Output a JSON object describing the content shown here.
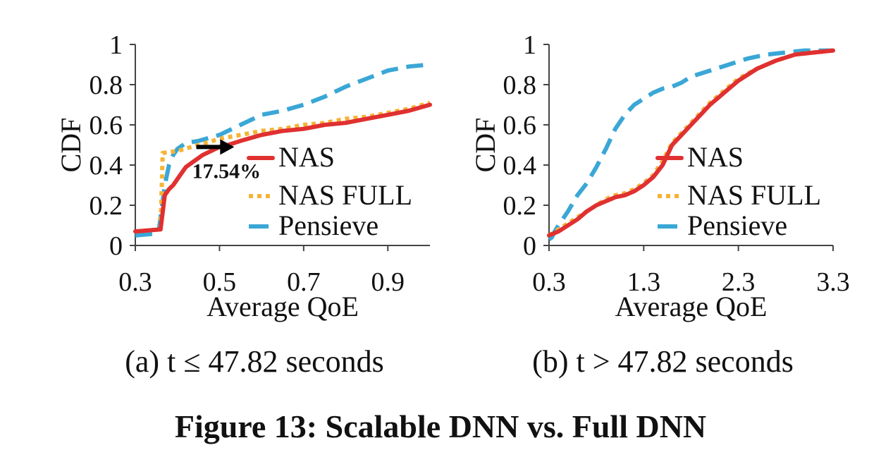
{
  "figure": {
    "caption": "Figure 13: Scalable DNN vs. Full DNN"
  },
  "colors": {
    "NAS": "#e03030",
    "NAS FULL": "#f5b335",
    "Pensieve": "#3aa7d6",
    "axis": "#444444",
    "text": "#111111"
  },
  "chart_data": [
    {
      "type": "line",
      "subcaption": "(a) t ≤ 47.82 seconds",
      "xlabel": "Average QoE",
      "ylabel": "CDF",
      "xlim": [
        0.3,
        1.0
      ],
      "ylim": [
        0,
        1
      ],
      "xticks": [
        0.3,
        0.5,
        0.7,
        0.9
      ],
      "xtick_labels": [
        "0.3",
        "0.5",
        "0.7",
        "0.9"
      ],
      "yticks": [
        0,
        0.2,
        0.4,
        0.6,
        0.8,
        1
      ],
      "ytick_labels": [
        "0",
        "0.2",
        "0.4",
        "0.6",
        "0.8",
        "1"
      ],
      "grid": false,
      "legend": "right",
      "annotation": {
        "text": "17.54%",
        "arrow_from": [
          0.445,
          0.49
        ],
        "arrow_to": [
          0.535,
          0.49
        ]
      },
      "series": [
        {
          "name": "NAS",
          "style": "solid",
          "x": [
            0.3,
            0.36,
            0.37,
            0.38,
            0.39,
            0.4,
            0.41,
            0.42,
            0.44,
            0.46,
            0.48,
            0.5,
            0.52,
            0.55,
            0.6,
            0.65,
            0.7,
            0.75,
            0.8,
            0.85,
            0.9,
            0.95,
            1.0
          ],
          "y": [
            0.07,
            0.08,
            0.25,
            0.28,
            0.3,
            0.33,
            0.36,
            0.39,
            0.42,
            0.45,
            0.47,
            0.49,
            0.5,
            0.52,
            0.55,
            0.57,
            0.58,
            0.6,
            0.61,
            0.63,
            0.65,
            0.67,
            0.7
          ]
        },
        {
          "name": "NAS FULL",
          "style": "dotted",
          "x": [
            0.3,
            0.36,
            0.365,
            0.4,
            0.45,
            0.5,
            0.55,
            0.6,
            0.65,
            0.7,
            0.75,
            0.8,
            0.85,
            0.9,
            0.95,
            1.0
          ],
          "y": [
            0.07,
            0.08,
            0.46,
            0.47,
            0.5,
            0.53,
            0.55,
            0.57,
            0.58,
            0.6,
            0.61,
            0.63,
            0.64,
            0.66,
            0.68,
            0.71
          ]
        },
        {
          "name": "Pensieve",
          "style": "dashed",
          "x": [
            0.3,
            0.355,
            0.37,
            0.38,
            0.39,
            0.4,
            0.42,
            0.45,
            0.5,
            0.55,
            0.6,
            0.65,
            0.7,
            0.75,
            0.8,
            0.85,
            0.9,
            0.95,
            1.0
          ],
          "y": [
            0.05,
            0.06,
            0.3,
            0.4,
            0.45,
            0.48,
            0.51,
            0.52,
            0.55,
            0.6,
            0.65,
            0.67,
            0.7,
            0.74,
            0.79,
            0.83,
            0.87,
            0.89,
            0.9
          ]
        }
      ]
    },
    {
      "type": "line",
      "subcaption": "(b) t > 47.82 seconds",
      "xlabel": "Average QoE",
      "ylabel": "CDF",
      "xlim": [
        0.3,
        3.3
      ],
      "ylim": [
        0,
        1
      ],
      "xticks": [
        0.3,
        1.3,
        2.3,
        3.3
      ],
      "xtick_labels": [
        "0.3",
        "1.3",
        "2.3",
        "3.3"
      ],
      "yticks": [
        0,
        0.2,
        0.4,
        0.6,
        0.8,
        1
      ],
      "ytick_labels": [
        "0",
        "0.2",
        "0.4",
        "0.6",
        "0.8",
        "1"
      ],
      "grid": false,
      "legend": "bottom-right",
      "series": [
        {
          "name": "NAS",
          "style": "solid",
          "x": [
            0.3,
            0.4,
            0.5,
            0.6,
            0.7,
            0.8,
            0.9,
            1.0,
            1.1,
            1.2,
            1.3,
            1.4,
            1.5,
            1.6,
            1.7,
            1.8,
            1.9,
            2.0,
            2.1,
            2.2,
            2.3,
            2.5,
            2.7,
            2.9,
            3.1,
            3.3
          ],
          "y": [
            0.05,
            0.07,
            0.1,
            0.13,
            0.17,
            0.2,
            0.22,
            0.24,
            0.25,
            0.27,
            0.3,
            0.34,
            0.4,
            0.5,
            0.55,
            0.6,
            0.65,
            0.7,
            0.74,
            0.78,
            0.82,
            0.88,
            0.92,
            0.95,
            0.96,
            0.97
          ]
        },
        {
          "name": "NAS FULL",
          "style": "dotted",
          "x": [
            0.3,
            0.4,
            0.5,
            0.6,
            0.7,
            0.8,
            0.9,
            1.0,
            1.1,
            1.2,
            1.3,
            1.4,
            1.5,
            1.6,
            1.7,
            1.8,
            1.9,
            2.0,
            2.1,
            2.2,
            2.3,
            2.5,
            2.7,
            2.9,
            3.1,
            3.3
          ],
          "y": [
            0.05,
            0.08,
            0.11,
            0.14,
            0.17,
            0.2,
            0.23,
            0.25,
            0.26,
            0.28,
            0.31,
            0.35,
            0.42,
            0.51,
            0.56,
            0.61,
            0.66,
            0.71,
            0.75,
            0.79,
            0.83,
            0.88,
            0.92,
            0.95,
            0.96,
            0.97
          ]
        },
        {
          "name": "Pensieve",
          "style": "dashed",
          "x": [
            0.3,
            0.33,
            0.36,
            0.4,
            0.5,
            0.6,
            0.7,
            0.8,
            0.9,
            1.0,
            1.1,
            1.2,
            1.3,
            1.4,
            1.5,
            1.6,
            1.7,
            1.8,
            2.0,
            2.2,
            2.4,
            2.6,
            2.8,
            3.0,
            3.3
          ],
          "y": [
            0.03,
            0.04,
            0.07,
            0.1,
            0.17,
            0.25,
            0.31,
            0.39,
            0.48,
            0.58,
            0.65,
            0.7,
            0.73,
            0.76,
            0.78,
            0.79,
            0.81,
            0.84,
            0.87,
            0.9,
            0.93,
            0.95,
            0.96,
            0.97,
            0.97
          ]
        }
      ]
    }
  ]
}
